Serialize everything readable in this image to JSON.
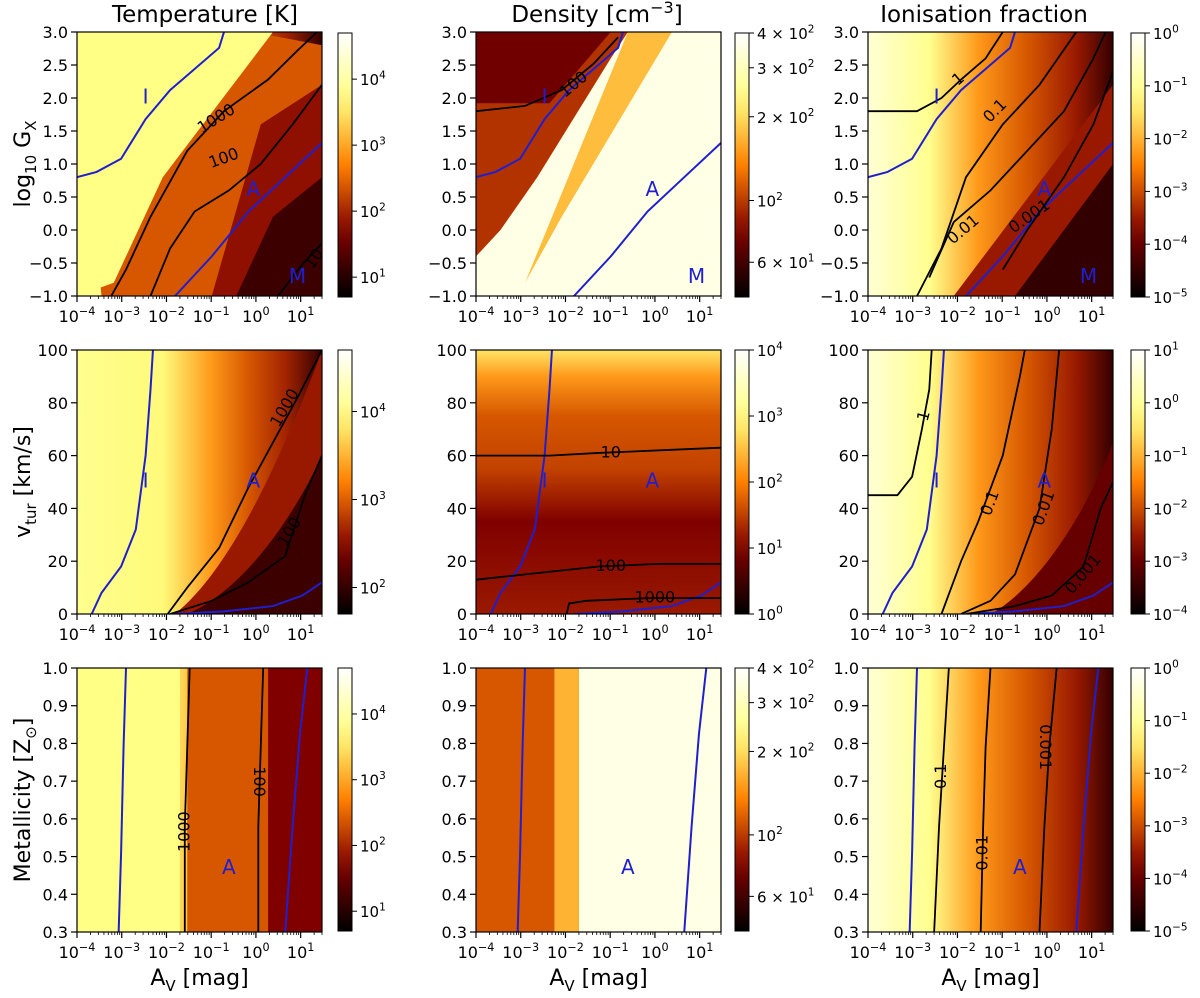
{
  "chart_data": {
    "type": "heatmap",
    "column_titles": [
      "Temperature [K]",
      "Density [cm$^{-3}$]",
      "Ionisation fraction"
    ],
    "column_titles_display": [
      "Temperature [K]",
      "Density [cm-3]",
      "Ionisation fraction"
    ],
    "x_axis": {
      "label": "A_V [mag]",
      "scale": "log",
      "range": [
        0.0001,
        30
      ],
      "ticks": [
        -4,
        -3,
        -2,
        -1,
        0,
        1
      ]
    },
    "rows": [
      {
        "ylabel": "log10 G_X",
        "yrange": [
          -1.0,
          3.0
        ],
        "yticks": [
          "-1.0",
          "-0.5",
          "0.0",
          "0.5",
          "1.0",
          "1.5",
          "2.0",
          "2.5",
          "3.0"
        ],
        "panels": [
          {
            "quantity": "temperature",
            "colorbar": {
              "ticks": [
                {
                  "value": 10,
                  "label": "10^1"
                },
                {
                  "value": 100,
                  "label": "10^2"
                },
                {
                  "value": 1000,
                  "label": "10^3"
                },
                {
                  "value": 10000,
                  "label": "10^4"
                }
              ],
              "range": [
                5,
                50000
              ]
            },
            "contour_labels": [
              "1000",
              "100",
              "10"
            ],
            "region_labels": [
              "I",
              "A",
              "M"
            ]
          },
          {
            "quantity": "density",
            "colorbar": {
              "ticks": [
                {
                  "value": 60,
                  "label": "6 × 10^1"
                },
                {
                  "value": 100,
                  "label": "10^2"
                },
                {
                  "value": 200,
                  "label": "2 × 10^2"
                },
                {
                  "value": 300,
                  "label": "3 × 10^2"
                },
                {
                  "value": 400,
                  "label": "4 × 10^2"
                }
              ],
              "range": [
                45,
                400
              ]
            },
            "contour_labels": [
              "100"
            ],
            "region_labels": [
              "I",
              "A",
              "M"
            ]
          },
          {
            "quantity": "ionisation",
            "colorbar": {
              "ticks": [
                {
                  "value": -5,
                  "label": "10^-5"
                },
                {
                  "value": -4,
                  "label": "10^-4"
                },
                {
                  "value": -3,
                  "label": "10^-3"
                },
                {
                  "value": -2,
                  "label": "10^-2"
                },
                {
                  "value": -1,
                  "label": "10^-1"
                },
                {
                  "value": 0,
                  "label": "10^0"
                }
              ],
              "range": [
                -5,
                0
              ]
            },
            "contour_labels": [
              "1",
              "0.1",
              "0.01",
              "0.001"
            ],
            "region_labels": [
              "I",
              "A",
              "M"
            ]
          }
        ]
      },
      {
        "ylabel": "v_tur [km/s]",
        "yrange": [
          0,
          100
        ],
        "yticks": [
          "0",
          "20",
          "40",
          "60",
          "80",
          "100"
        ],
        "panels": [
          {
            "quantity": "temperature",
            "colorbar": {
              "ticks": [
                {
                  "value": 100,
                  "label": "10^2"
                },
                {
                  "value": 1000,
                  "label": "10^3"
                },
                {
                  "value": 10000,
                  "label": "10^4"
                }
              ],
              "range": [
                50,
                50000
              ]
            },
            "contour_labels": [
              "1000",
              "100"
            ],
            "region_labels": [
              "I",
              "A"
            ]
          },
          {
            "quantity": "density",
            "colorbar": {
              "ticks": [
                {
                  "value": 0,
                  "label": "10^0"
                },
                {
                  "value": 1,
                  "label": "10^1"
                },
                {
                  "value": 2,
                  "label": "10^2"
                },
                {
                  "value": 3,
                  "label": "10^3"
                },
                {
                  "value": 4,
                  "label": "10^4"
                }
              ],
              "range": [
                0,
                4
              ]
            },
            "contour_labels": [
              "10",
              "100",
              "1000"
            ],
            "region_labels": [
              "I",
              "A"
            ]
          },
          {
            "quantity": "ionisation",
            "colorbar": {
              "ticks": [
                {
                  "value": -4,
                  "label": "10^-4"
                },
                {
                  "value": -3,
                  "label": "10^-3"
                },
                {
                  "value": -2,
                  "label": "10^-2"
                },
                {
                  "value": -1,
                  "label": "10^-1"
                },
                {
                  "value": 0,
                  "label": "10^0"
                },
                {
                  "value": 1,
                  "label": "10^1"
                }
              ],
              "range": [
                -4,
                1
              ]
            },
            "contour_labels": [
              "1",
              "0.1",
              "0.01",
              "0.001"
            ],
            "region_labels": [
              "I",
              "A"
            ]
          }
        ]
      },
      {
        "ylabel": "Metallicity [Z⊙]",
        "yrange": [
          0.3,
          1.0
        ],
        "yticks": [
          "0.3",
          "0.4",
          "0.5",
          "0.6",
          "0.7",
          "0.8",
          "0.9",
          "1.0"
        ],
        "panels": [
          {
            "quantity": "temperature",
            "colorbar": {
              "ticks": [
                {
                  "value": 10,
                  "label": "10^1"
                },
                {
                  "value": 100,
                  "label": "10^2"
                },
                {
                  "value": 1000,
                  "label": "10^3"
                },
                {
                  "value": 10000,
                  "label": "10^4"
                }
              ],
              "range": [
                5,
                50000
              ]
            },
            "contour_labels": [
              "1000",
              "100"
            ],
            "region_labels": [
              "A"
            ]
          },
          {
            "quantity": "density",
            "colorbar": {
              "ticks": [
                {
                  "value": 60,
                  "label": "6 × 10^1"
                },
                {
                  "value": 100,
                  "label": "10^2"
                },
                {
                  "value": 200,
                  "label": "2 × 10^2"
                },
                {
                  "value": 300,
                  "label": "3 × 10^2"
                },
                {
                  "value": 400,
                  "label": "4 × 10^2"
                }
              ],
              "range": [
                45,
                400
              ]
            },
            "contour_labels": [],
            "region_labels": [
              "A"
            ]
          },
          {
            "quantity": "ionisation",
            "colorbar": {
              "ticks": [
                {
                  "value": -5,
                  "label": "10^-5"
                },
                {
                  "value": -4,
                  "label": "10^-4"
                },
                {
                  "value": -3,
                  "label": "10^-3"
                },
                {
                  "value": -2,
                  "label": "10^-2"
                },
                {
                  "value": -1,
                  "label": "10^-1"
                },
                {
                  "value": 0,
                  "label": "10^0"
                }
              ],
              "range": [
                -5,
                0
              ]
            },
            "contour_labels": [
              "0.1",
              "0.01",
              "0.001"
            ],
            "region_labels": [
              "A"
            ]
          }
        ]
      }
    ],
    "colors": {
      "contour": "#000000",
      "boundary": "#1f1fd0",
      "region_label": "#1f1fd0"
    },
    "colormap": "afmhot"
  }
}
